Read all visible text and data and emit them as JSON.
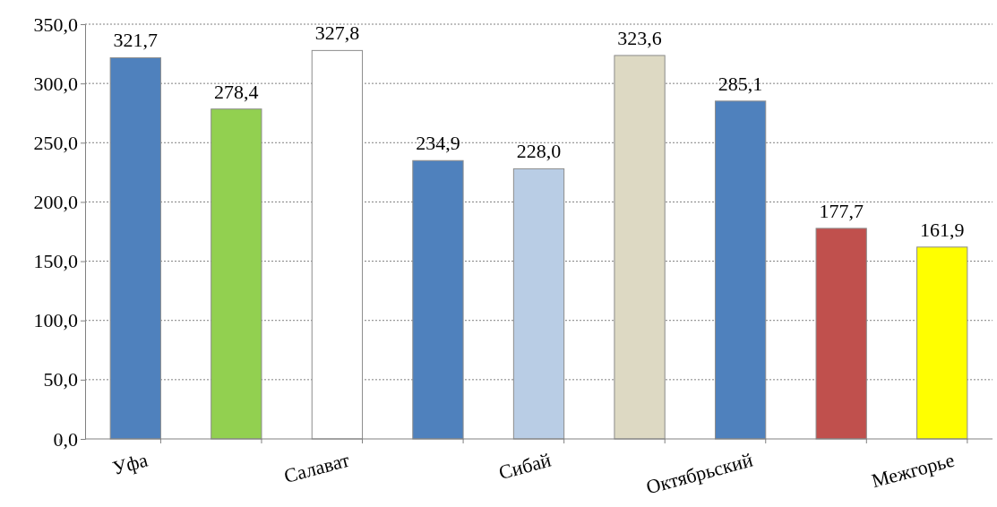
{
  "chart_data": {
    "type": "bar",
    "categories": [
      "Уфа",
      null,
      "Салават",
      null,
      "Сибай",
      null,
      "Октябрьский",
      null,
      "Межгорье"
    ],
    "values": [
      321.7,
      278.4,
      327.8,
      234.9,
      228.0,
      323.6,
      285.1,
      177.7,
      161.9
    ],
    "colors": [
      "#4f81bd",
      "#92d050",
      "#ffffff",
      "#4f81bd",
      "#b9cde5",
      "#ddd9c3",
      "#4f81bd",
      "#c0504d",
      "#ffff00"
    ],
    "value_labels": [
      "321,7",
      "278,4",
      "327,8",
      "234,9",
      "228,0",
      "323,6",
      "285,1",
      "177,7",
      "161,9"
    ],
    "ylim": [
      0,
      350
    ],
    "yticks": [
      {
        "value": 0,
        "label": "0,0"
      },
      {
        "value": 50,
        "label": "50,0"
      },
      {
        "value": 100,
        "label": "100,0"
      },
      {
        "value": 150,
        "label": "150,0"
      },
      {
        "value": 200,
        "label": "200,0"
      },
      {
        "value": 250,
        "label": "250,0"
      },
      {
        "value": 300,
        "label": "300,0"
      },
      {
        "value": 350,
        "label": "350,0"
      }
    ],
    "grid": "y"
  }
}
